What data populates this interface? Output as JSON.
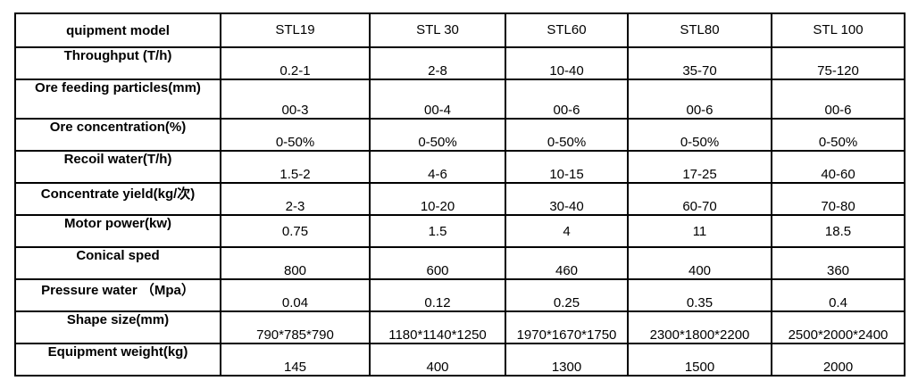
{
  "table": {
    "header": {
      "label": "quipment model",
      "models": [
        "STL19",
        "STL 30",
        "STL60",
        "STL80",
        "STL 100"
      ]
    },
    "rows": [
      {
        "label": "Throughput (T/h)",
        "values": [
          "0.2-1",
          "2-8",
          "10-40",
          "35-70",
          "75-120"
        ]
      },
      {
        "label": "Ore feeding particles(mm)",
        "values": [
          "00-3",
          "00-4",
          "00-6",
          "00-6",
          "00-6"
        ]
      },
      {
        "label": "Ore concentration(%)",
        "values": [
          "0-50%",
          "0-50%",
          "0-50%",
          "0-50%",
          "0-50%"
        ]
      },
      {
        "label": "Recoil water(T/h)",
        "values": [
          "1.5-2",
          "4-6",
          "10-15",
          "17-25",
          "40-60"
        ]
      },
      {
        "label": "Concentrate yield(kg/次)",
        "values": [
          "2-3",
          "10-20",
          "30-40",
          "60-70",
          "70-80"
        ]
      },
      {
        "label": "Motor power(kw)",
        "values": [
          "0.75",
          "1.5",
          "4",
          "11",
          "18.5"
        ]
      },
      {
        "label": "Conical sped",
        "values": [
          "800",
          "600",
          "460",
          "400",
          "360"
        ]
      },
      {
        "label": "Pressure water （Mpa）",
        "values": [
          "0.04",
          "0.12",
          "0.25",
          "0.35",
          "0.4"
        ]
      },
      {
        "label": "Shape size(mm)",
        "values": [
          "790*785*790",
          "1180*1140*1250",
          "1970*1670*1750",
          "2300*1800*2200",
          "2500*2000*2400"
        ]
      },
      {
        "label": "Equipment weight(kg)",
        "values": [
          "145",
          "400",
          "1300",
          "1500",
          "2000"
        ]
      }
    ]
  },
  "colors": {
    "border": "#000000",
    "text": "#000000",
    "background": "#ffffff"
  }
}
